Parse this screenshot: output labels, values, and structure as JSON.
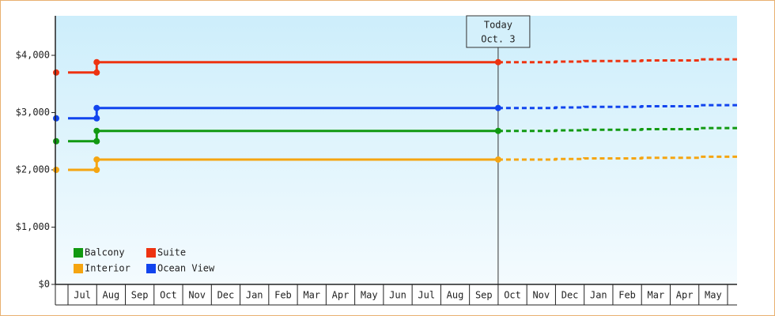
{
  "chart_data": {
    "type": "step-line",
    "categories": [
      "Jul",
      "Aug",
      "Sep",
      "Oct",
      "Nov",
      "Dec",
      "Jan",
      "Feb",
      "Mar",
      "Apr",
      "May",
      "Jun",
      "Jul",
      "Aug",
      "Sep",
      "Oct",
      "Nov",
      "Dec",
      "Jan",
      "Feb",
      "Mar",
      "Apr",
      "May"
    ],
    "ylim": [
      0,
      4690
    ],
    "yticks": [
      {
        "value": 0,
        "label": "$0"
      },
      {
        "value": 1000,
        "label": "$1,000"
      },
      {
        "value": 2000,
        "label": "$2,000"
      },
      {
        "value": 3000,
        "label": "$3,000"
      },
      {
        "value": 4000,
        "label": "$4,000"
      }
    ],
    "annotation": [
      "Today",
      "Oct. 3"
    ],
    "series": [
      {
        "name": "Balcony",
        "color": "#119911",
        "values": [
          2500,
          2680,
          2680,
          2680,
          2680,
          2680,
          2680,
          2680,
          2680,
          2680,
          2680,
          2680,
          2680,
          2680,
          2680,
          2680,
          null,
          null,
          null,
          null,
          null,
          null,
          null
        ],
        "forecast": [
          null,
          null,
          null,
          null,
          null,
          null,
          null,
          null,
          null,
          null,
          null,
          null,
          null,
          null,
          null,
          2680,
          2680,
          2690,
          2700,
          2700,
          2710,
          2710,
          2730
        ]
      },
      {
        "name": "Suite",
        "color": "#ee3311",
        "values": [
          3700,
          3880,
          3880,
          3880,
          3880,
          3880,
          3880,
          3880,
          3880,
          3880,
          3880,
          3880,
          3880,
          3880,
          3880,
          3880,
          null,
          null,
          null,
          null,
          null,
          null,
          null
        ],
        "forecast": [
          null,
          null,
          null,
          null,
          null,
          null,
          null,
          null,
          null,
          null,
          null,
          null,
          null,
          null,
          null,
          3880,
          3880,
          3890,
          3900,
          3900,
          3910,
          3910,
          3930
        ]
      },
      {
        "name": "Interior",
        "color": "#f5a511",
        "values": [
          2000,
          2180,
          2180,
          2180,
          2180,
          2180,
          2180,
          2180,
          2180,
          2180,
          2180,
          2180,
          2180,
          2180,
          2180,
          2180,
          null,
          null,
          null,
          null,
          null,
          null,
          null
        ],
        "forecast": [
          null,
          null,
          null,
          null,
          null,
          null,
          null,
          null,
          null,
          null,
          null,
          null,
          null,
          null,
          null,
          2180,
          2180,
          2190,
          2200,
          2200,
          2210,
          2210,
          2230
        ]
      },
      {
        "name": "Ocean View",
        "color": "#1144ee",
        "values": [
          2900,
          3080,
          3080,
          3080,
          3080,
          3080,
          3080,
          3080,
          3080,
          3080,
          3080,
          3080,
          3080,
          3080,
          3080,
          3080,
          null,
          null,
          null,
          null,
          null,
          null,
          null
        ],
        "forecast": [
          null,
          null,
          null,
          null,
          null,
          null,
          null,
          null,
          null,
          null,
          null,
          null,
          null,
          null,
          null,
          3080,
          3080,
          3090,
          3100,
          3100,
          3110,
          3110,
          3130
        ]
      }
    ]
  }
}
